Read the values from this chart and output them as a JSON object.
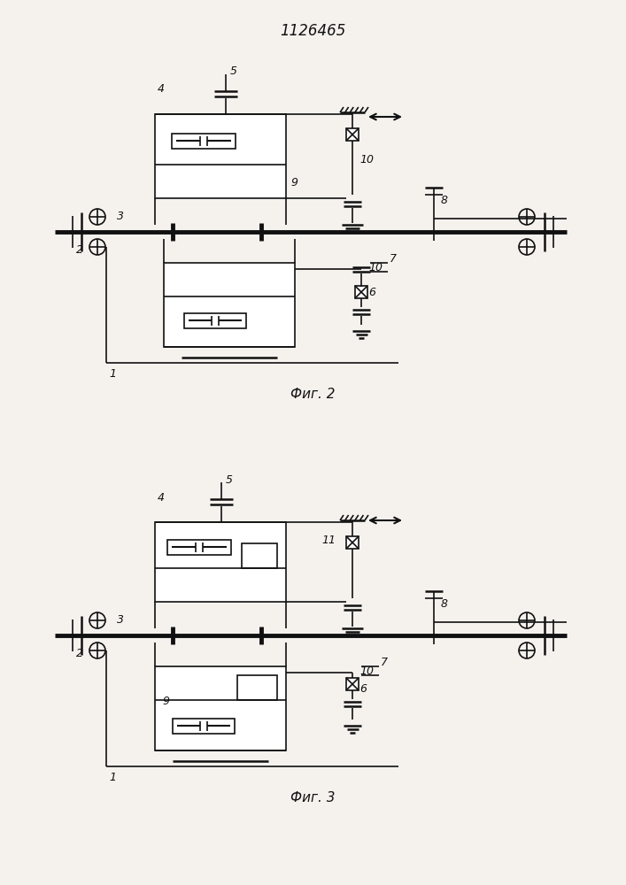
{
  "title": "1126465",
  "fig2_caption": "Фиг. 2",
  "fig3_caption": "Фиг. 3",
  "bg_color": "#f5f2ee",
  "line_color": "#111111",
  "lw": 1.2,
  "lw_thick": 3.5,
  "lw_med": 1.8
}
